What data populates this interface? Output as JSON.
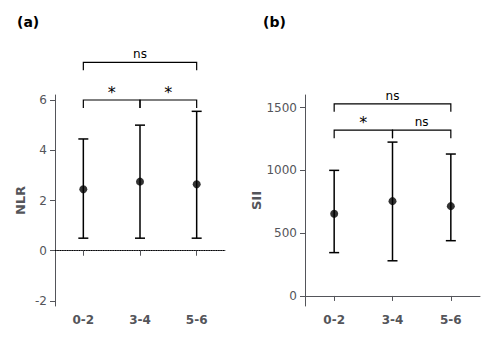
{
  "chart_data": [
    {
      "type": "scatter",
      "title": "(a)",
      "categories": [
        "0-2",
        "3-4",
        "5-6"
      ],
      "values": [
        2.45,
        2.75,
        2.65
      ],
      "error_lower": [
        1.95,
        2.25,
        2.15
      ],
      "error_upper": [
        2.0,
        2.25,
        2.9
      ],
      "color": "#000000",
      "marker": "circle",
      "ylabel": "NLR",
      "ylim": [
        -2.2,
        6.2
      ],
      "yticks": [
        -2,
        0,
        2,
        4,
        6
      ],
      "grid": false,
      "reference_lines": [
        {
          "y": 0,
          "line_style": "dotted",
          "color": "#000000"
        }
      ],
      "annotations": [
        {
          "type": "bracket",
          "from": "0-2",
          "to": "3-4",
          "y": 6.0,
          "label": "*"
        },
        {
          "type": "bracket",
          "from": "3-4",
          "to": "5-6",
          "y": 6.0,
          "label": "*"
        },
        {
          "type": "bracket",
          "from": "0-2",
          "to": "5-6",
          "y": 7.5,
          "label": "ns"
        }
      ]
    },
    {
      "type": "scatter",
      "title": "(b)",
      "categories": [
        "0-2",
        "3-4",
        "5-6"
      ],
      "values": [
        655,
        755,
        715
      ],
      "error_lower": [
        310,
        475,
        275
      ],
      "error_upper": [
        345,
        470,
        415
      ],
      "color": "#000000",
      "marker": "circle",
      "ylabel": "SII",
      "ylim": [
        -80,
        1600
      ],
      "yticks": [
        0,
        500,
        1000,
        1500
      ],
      "grid": false,
      "annotations": [
        {
          "type": "bracket",
          "from": "0-2",
          "to": "3-4",
          "y": 1320,
          "label": "*"
        },
        {
          "type": "bracket",
          "from": "3-4",
          "to": "5-6",
          "y": 1320,
          "label": "ns"
        },
        {
          "type": "bracket",
          "from": "0-2",
          "to": "5-6",
          "y": 1530,
          "label": "ns"
        }
      ]
    }
  ]
}
